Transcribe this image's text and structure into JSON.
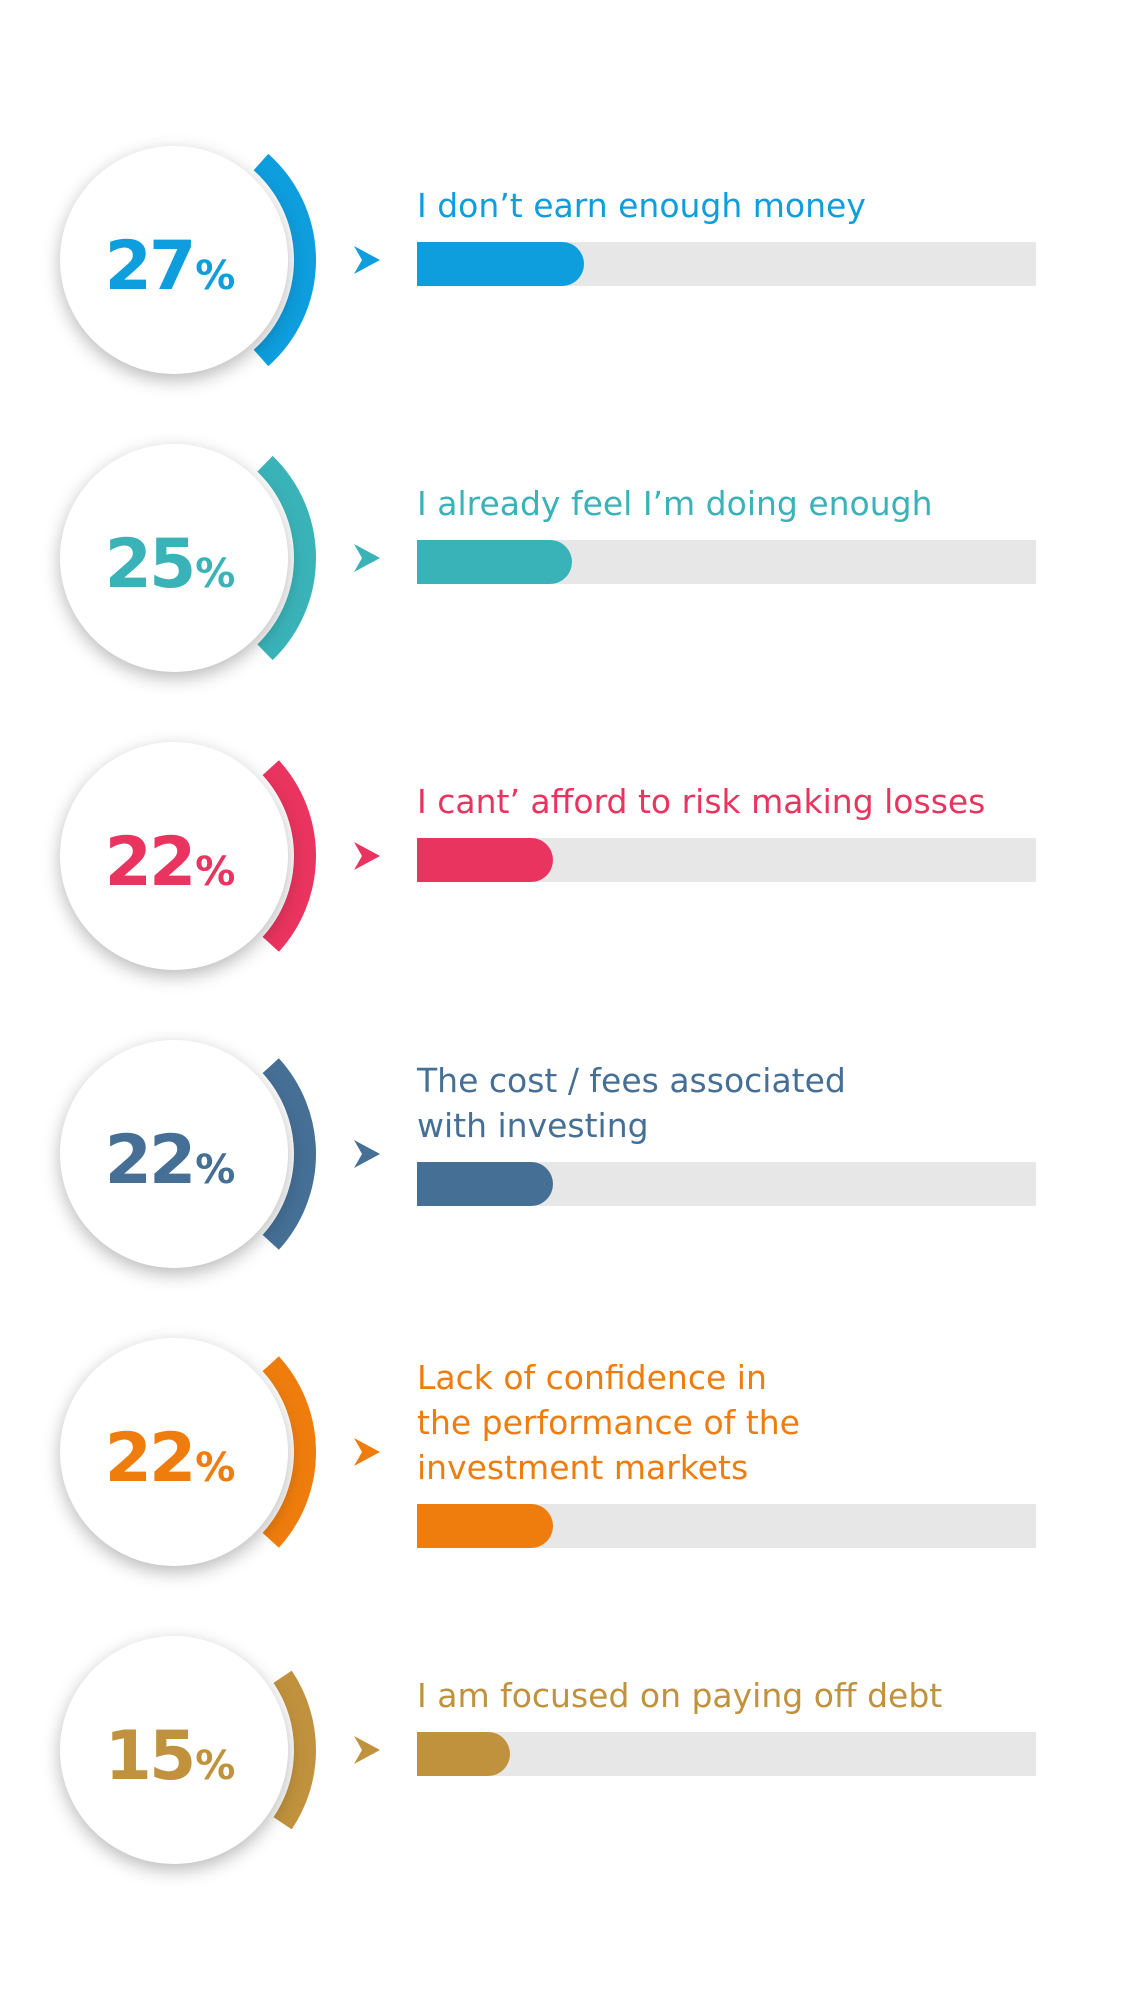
{
  "chart_data": {
    "type": "bar",
    "orientation": "horizontal",
    "xlim": [
      0,
      100
    ],
    "items": [
      {
        "value": 27,
        "number": "27",
        "unit": "%",
        "label": "I don’t earn enough money",
        "color": "#0e9ddd"
      },
      {
        "value": 25,
        "number": "25",
        "unit": "%",
        "label": "I already feel I’m doing enough",
        "color": "#3ab3b8"
      },
      {
        "value": 22,
        "number": "22",
        "unit": "%",
        "label": "I cant’ afford to risk making losses",
        "color": "#e8345e"
      },
      {
        "value": 22,
        "number": "22",
        "unit": "%",
        "label": "The cost / fees associated\nwith investing",
        "color": "#466f96"
      },
      {
        "value": 22,
        "number": "22",
        "unit": "%",
        "label": "Lack of confidence in\nthe performance of the\ninvestment markets",
        "color": "#ef7d0d"
      },
      {
        "value": 15,
        "number": "15",
        "unit": "%",
        "label": "I am focused on paying off debt",
        "color": "#c0923d"
      }
    ]
  }
}
